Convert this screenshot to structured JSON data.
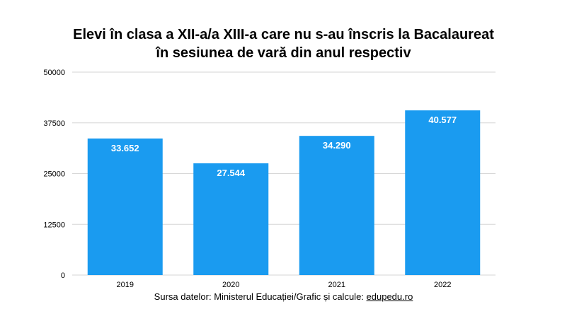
{
  "header": {
    "title_line1": "Elevi în clasa a XII-a/a XIII-a care nu s-au înscris la Bacalaureat",
    "title_line2": "în sesiunea de vară din anul respectiv"
  },
  "footer": {
    "source_text": "Sursa datelor: Ministerul Educației/Grafic și calcule: ",
    "source_link": "edupedu.ro"
  },
  "colors": {
    "bar": "#1a9bf0",
    "grid": "#d6d6d6"
  },
  "chart_data": {
    "type": "bar",
    "title": "Elevi în clasa a XII-a/a XIII-a care nu s-au înscris la Bacalaureat în sesiunea de vară din anul respectiv",
    "categories": [
      "2019",
      "2020",
      "2021",
      "2022"
    ],
    "values": [
      33652,
      27544,
      34290,
      40577
    ],
    "data_labels": [
      "33.652",
      "27.544",
      "34.290",
      "40.577"
    ],
    "yticks": [
      0,
      12500,
      25000,
      37500,
      50000
    ],
    "ytick_labels": [
      "0",
      "12500",
      "25000",
      "37500",
      "50000"
    ],
    "ylim": [
      0,
      50000
    ],
    "xlabel": "",
    "ylabel": "",
    "grid": true,
    "legend": "none"
  }
}
